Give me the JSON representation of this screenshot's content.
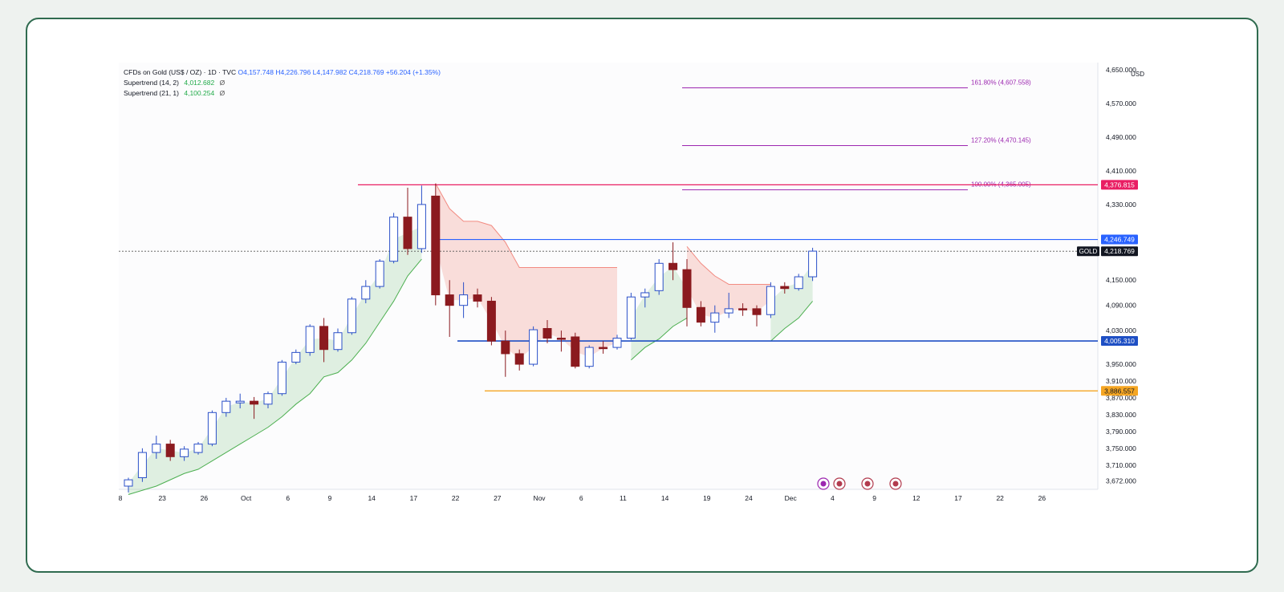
{
  "legend": {
    "symbol": "CFDs on Gold (US$ / OZ) · 1D · TVC",
    "open": "O4,157.748",
    "high": "H4,226.796",
    "low": "L4,147.982",
    "close": "C4,218.769",
    "change": "+56.204 (+1.35%)",
    "supertrend1_label": "Supertrend (14, 2)",
    "supertrend1_value": "4,012.682",
    "supertrend2_label": "Supertrend (21, 1)",
    "supertrend2_value": "4,100.254",
    "dot": "Ø"
  },
  "currency": "USD",
  "colors": {
    "up_body": "#ffffff",
    "up_border": "#2b50c8",
    "down_body": "#8b1a1f",
    "supertrend_up": "#4caf50",
    "supertrend_down": "#f28b82",
    "fib": "#9c27b0",
    "resistance": "#e91e63",
    "blue_level": "#2962ff",
    "support": "#1e4fc4",
    "orange_level": "#f5a623"
  },
  "chart_data": {
    "type": "candlestick",
    "x_ticks": [
      "8",
      "23",
      "26",
      "Oct",
      "6",
      "9",
      "14",
      "17",
      "22",
      "27",
      "Nov",
      "6",
      "11",
      "14",
      "19",
      "24",
      "Dec",
      "4",
      "9",
      "12",
      "17",
      "22",
      "26"
    ],
    "y_ticks": [
      "4,650.000",
      "4,570.000",
      "4,490.000",
      "4,410.000",
      "4,330.000",
      "4,250.000",
      "4,150.000",
      "4,090.000",
      "4,030.000",
      "3,950.000",
      "3,910.000",
      "3,870.000",
      "3,830.000",
      "3,790.000",
      "3,750.000",
      "3,710.000",
      "3,672.000"
    ],
    "ylim": [
      3660,
      4660
    ],
    "candles": [
      {
        "o": 3660,
        "h": 3680,
        "l": 3645,
        "c": 3675
      },
      {
        "o": 3680,
        "h": 3750,
        "l": 3670,
        "c": 3740
      },
      {
        "o": 3740,
        "h": 3780,
        "l": 3725,
        "c": 3760
      },
      {
        "o": 3760,
        "h": 3770,
        "l": 3720,
        "c": 3730
      },
      {
        "o": 3730,
        "h": 3755,
        "l": 3720,
        "c": 3748
      },
      {
        "o": 3740,
        "h": 3765,
        "l": 3735,
        "c": 3760
      },
      {
        "o": 3760,
        "h": 3840,
        "l": 3755,
        "c": 3835
      },
      {
        "o": 3835,
        "h": 3870,
        "l": 3825,
        "c": 3862
      },
      {
        "o": 3858,
        "h": 3880,
        "l": 3845,
        "c": 3862
      },
      {
        "o": 3862,
        "h": 3872,
        "l": 3820,
        "c": 3855
      },
      {
        "o": 3855,
        "h": 3885,
        "l": 3845,
        "c": 3880
      },
      {
        "o": 3880,
        "h": 3960,
        "l": 3875,
        "c": 3955
      },
      {
        "o": 3955,
        "h": 3985,
        "l": 3950,
        "c": 3978
      },
      {
        "o": 3978,
        "h": 4045,
        "l": 3970,
        "c": 4040
      },
      {
        "o": 4040,
        "h": 4060,
        "l": 3955,
        "c": 3985
      },
      {
        "o": 3985,
        "h": 4035,
        "l": 3980,
        "c": 4025
      },
      {
        "o": 4025,
        "h": 4110,
        "l": 4020,
        "c": 4105
      },
      {
        "o": 4105,
        "h": 4150,
        "l": 4095,
        "c": 4135
      },
      {
        "o": 4135,
        "h": 4200,
        "l": 4130,
        "c": 4195
      },
      {
        "o": 4195,
        "h": 4310,
        "l": 4190,
        "c": 4300
      },
      {
        "o": 4300,
        "h": 4370,
        "l": 4210,
        "c": 4225
      },
      {
        "o": 4225,
        "h": 4375,
        "l": 4215,
        "c": 4330
      },
      {
        "o": 4350,
        "h": 4380,
        "l": 4090,
        "c": 4115
      },
      {
        "o": 4115,
        "h": 4150,
        "l": 4015,
        "c": 4090
      },
      {
        "o": 4090,
        "h": 4145,
        "l": 4060,
        "c": 4115
      },
      {
        "o": 4115,
        "h": 4130,
        "l": 4085,
        "c": 4100
      },
      {
        "o": 4100,
        "h": 4110,
        "l": 3995,
        "c": 4005
      },
      {
        "o": 4005,
        "h": 4030,
        "l": 3920,
        "c": 3975
      },
      {
        "o": 3975,
        "h": 3985,
        "l": 3935,
        "c": 3950
      },
      {
        "o": 3950,
        "h": 4040,
        "l": 3945,
        "c": 4032
      },
      {
        "o": 4035,
        "h": 4055,
        "l": 4000,
        "c": 4012
      },
      {
        "o": 4012,
        "h": 4030,
        "l": 3980,
        "c": 4010
      },
      {
        "o": 4015,
        "h": 4025,
        "l": 3940,
        "c": 3945
      },
      {
        "o": 3945,
        "h": 3995,
        "l": 3940,
        "c": 3990
      },
      {
        "o": 3990,
        "h": 4005,
        "l": 3975,
        "c": 3987
      },
      {
        "o": 3990,
        "h": 4020,
        "l": 3985,
        "c": 4012
      },
      {
        "o": 4012,
        "h": 4120,
        "l": 4008,
        "c": 4110
      },
      {
        "o": 4110,
        "h": 4130,
        "l": 4085,
        "c": 4120
      },
      {
        "o": 4125,
        "h": 4200,
        "l": 4115,
        "c": 4190
      },
      {
        "o": 4190,
        "h": 4240,
        "l": 4150,
        "c": 4175
      },
      {
        "o": 4175,
        "h": 4200,
        "l": 4040,
        "c": 4085
      },
      {
        "o": 4085,
        "h": 4100,
        "l": 4040,
        "c": 4050
      },
      {
        "o": 4050,
        "h": 4090,
        "l": 4025,
        "c": 4072
      },
      {
        "o": 4072,
        "h": 4120,
        "l": 4060,
        "c": 4082
      },
      {
        "o": 4082,
        "h": 4095,
        "l": 4065,
        "c": 4080
      },
      {
        "o": 4082,
        "h": 4090,
        "l": 4040,
        "c": 4068
      },
      {
        "o": 4068,
        "h": 4145,
        "l": 4060,
        "c": 4135
      },
      {
        "o": 4135,
        "h": 4145,
        "l": 4118,
        "c": 4130
      },
      {
        "o": 4130,
        "h": 4165,
        "l": 4125,
        "c": 4158
      },
      {
        "o": 4158,
        "h": 4227,
        "l": 4148,
        "c": 4219
      }
    ],
    "supertrend_up_band": [
      {
        "from": 0,
        "to": 21,
        "values": [
          3640,
          3650,
          3660,
          3675,
          3690,
          3700,
          3720,
          3740,
          3760,
          3780,
          3800,
          3825,
          3855,
          3880,
          3920,
          3930,
          3960,
          4000,
          4050,
          4100,
          4160,
          4200
        ]
      },
      {
        "from": 36,
        "to": 40,
        "values": [
          3960,
          3990,
          4010,
          4040,
          4060
        ]
      },
      {
        "from": 46,
        "to": 49,
        "values": [
          4005,
          4035,
          4060,
          4100
        ]
      }
    ],
    "supertrend_down_band": [
      {
        "from": 22,
        "to": 35,
        "values": [
          4380,
          4320,
          4290,
          4290,
          4280,
          4240,
          4180,
          4180,
          4180,
          4180,
          4180,
          4180,
          4180,
          4180
        ]
      },
      {
        "from": 40,
        "to": 46,
        "values": [
          4230,
          4190,
          4160,
          4140,
          4140,
          4140,
          4140
        ]
      }
    ],
    "levels": [
      {
        "name": "resistance",
        "value": 4376.815,
        "label": "4,376.815"
      },
      {
        "name": "high",
        "value": 4246.749,
        "label": "4,246.749"
      },
      {
        "name": "last",
        "value": 4218.769,
        "label": "4,218.769",
        "tag": "GOLD"
      },
      {
        "name": "support",
        "value": 4005.31,
        "label": "4,005.310"
      },
      {
        "name": "low",
        "value": 3886.557,
        "label": "3,886.557"
      }
    ],
    "fib": [
      {
        "label": "161.80% (4,607.558)",
        "value": 4607.558
      },
      {
        "label": "127.20% (4,470.145)",
        "value": 4470.145
      },
      {
        "label": "100.00% (4,365.005)",
        "value": 4365.005
      }
    ]
  }
}
